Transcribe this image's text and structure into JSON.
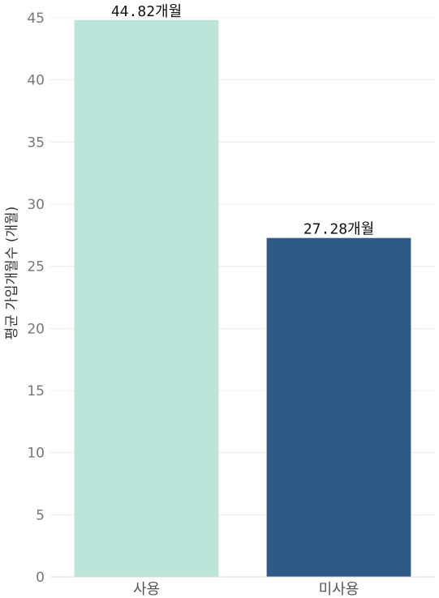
{
  "chart_data": {
    "type": "bar",
    "title": "",
    "xlabel": "",
    "ylabel": "평균 가입개월수 (개월)",
    "categories": [
      "사용",
      "미사용"
    ],
    "values": [
      44.82,
      27.28
    ],
    "data_labels": [
      "44.82개월",
      "27.28개월"
    ],
    "colors": [
      "#bde4d8",
      "#2e5a87"
    ],
    "ylim": [
      0,
      45
    ],
    "yticks": [
      0,
      5,
      10,
      15,
      20,
      25,
      30,
      35,
      40,
      45
    ],
    "grid": true,
    "legend": "none"
  }
}
